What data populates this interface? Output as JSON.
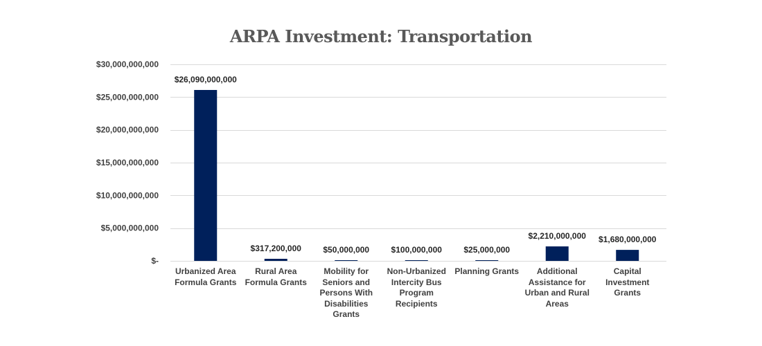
{
  "chart_data": {
    "type": "bar",
    "title": "ARPA Investment: Transportation",
    "categories": [
      "Urbanized Area Formula Grants",
      "Rural Area Formula Grants",
      "Mobility for Seniors and Persons With Disabilities Grants",
      "Non-Urbanized Intercity Bus Program Recipients",
      "Planning Grants",
      "Additional Assistance for Urban and Rural Areas",
      "Capital Investment Grants"
    ],
    "values": [
      26090000000,
      317200000,
      50000000,
      100000000,
      25000000,
      2210000000,
      1680000000
    ],
    "data_labels": [
      "$26,090,000,000",
      "$317,200,000",
      "$50,000,000",
      "$100,000,000",
      "$25,000,000",
      "$2,210,000,000",
      "$1,680,000,000"
    ],
    "yticks": [
      0,
      5000000000,
      10000000000,
      15000000000,
      20000000000,
      25000000000,
      30000000000
    ],
    "ytick_labels": [
      "$-",
      "$5,000,000,000",
      "$10,000,000,000",
      "$15,000,000,000",
      "$20,000,000,000",
      "$25,000,000,000",
      "$30,000,000,000"
    ],
    "ylim": [
      0,
      30000000000
    ],
    "xlabel": "",
    "ylabel": "",
    "grid": true,
    "legend": "none",
    "bar_color": "#00205b",
    "grid_color": "#d9d9d9"
  }
}
